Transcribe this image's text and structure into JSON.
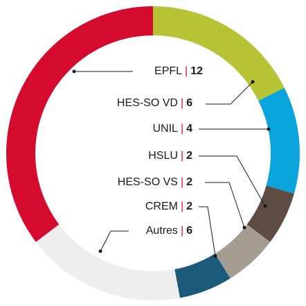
{
  "chart_data": {
    "type": "donut",
    "categories": [
      "EPFL",
      "HES-SO VD",
      "UNIL",
      "HSLU",
      "HES-SO VS",
      "CREM",
      "Autres"
    ],
    "values": [
      12,
      6,
      4,
      2,
      2,
      2,
      6
    ],
    "colors": [
      "#d50a2f",
      "#b5c334",
      "#0aa4dc",
      "#5e4c43",
      "#a59c92",
      "#1c5a7c",
      "#eeeeee"
    ],
    "separator": "|",
    "separator_color": "#d50a2f"
  }
}
